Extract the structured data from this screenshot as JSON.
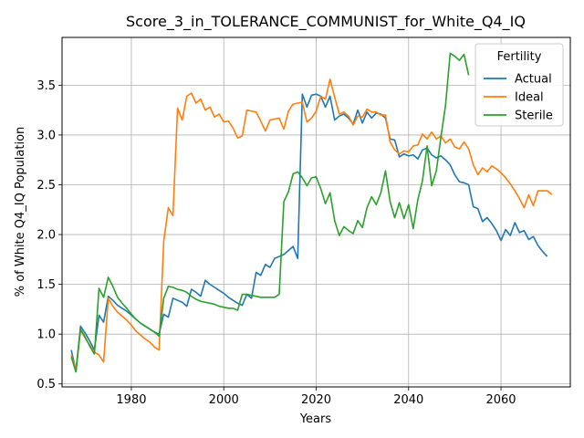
{
  "chart_data": {
    "type": "line",
    "title": "Score_3_in_TOLERANCE_COMMUNIST_for_White_Q4_IQ",
    "xlabel": "Years",
    "ylabel": "% of White Q4_IQ Population",
    "xlim": [
      1965,
      2075
    ],
    "ylim": [
      0.47,
      3.98
    ],
    "xticks": [
      1980,
      2000,
      2020,
      2040,
      2060
    ],
    "yticks": [
      0.5,
      1.0,
      1.5,
      2.0,
      2.5,
      3.0,
      3.5
    ],
    "grid": true,
    "legend": {
      "title": "Fertility",
      "placement": "top-right"
    },
    "series": [
      {
        "name": "Actual",
        "color": "#1f77b4",
        "points": [
          [
            1967,
            0.84
          ],
          [
            1968,
            0.63
          ],
          [
            1969,
            1.08
          ],
          [
            1970,
            1.01
          ],
          [
            1971,
            0.93
          ],
          [
            1972,
            0.84
          ],
          [
            1973,
            1.19
          ],
          [
            1974,
            1.12
          ],
          [
            1975,
            1.38
          ],
          [
            1976,
            1.34
          ],
          [
            1977,
            1.29
          ],
          [
            1978,
            1.26
          ],
          [
            1979,
            1.23
          ],
          [
            1980,
            1.19
          ],
          [
            1981,
            1.15
          ],
          [
            1982,
            1.11
          ],
          [
            1983,
            1.08
          ],
          [
            1984,
            1.05
          ],
          [
            1985,
            1.02
          ],
          [
            1986,
            1.0
          ],
          [
            1987,
            1.2
          ],
          [
            1988,
            1.17
          ],
          [
            1989,
            1.36
          ],
          [
            1990,
            1.34
          ],
          [
            1991,
            1.32
          ],
          [
            1992,
            1.28
          ],
          [
            1993,
            1.45
          ],
          [
            1994,
            1.42
          ],
          [
            1995,
            1.38
          ],
          [
            1996,
            1.54
          ],
          [
            1997,
            1.5
          ],
          [
            1998,
            1.47
          ],
          [
            1999,
            1.44
          ],
          [
            2000,
            1.41
          ],
          [
            2001,
            1.37
          ],
          [
            2002,
            1.34
          ],
          [
            2003,
            1.31
          ],
          [
            2004,
            1.29
          ],
          [
            2005,
            1.4
          ],
          [
            2006,
            1.36
          ],
          [
            2007,
            1.62
          ],
          [
            2008,
            1.59
          ],
          [
            2009,
            1.7
          ],
          [
            2010,
            1.67
          ],
          [
            2011,
            1.76
          ],
          [
            2012,
            1.78
          ],
          [
            2013,
            1.8
          ],
          [
            2014,
            1.84
          ],
          [
            2015,
            1.88
          ],
          [
            2016,
            1.76
          ],
          [
            2017,
            3.41
          ],
          [
            2018,
            3.28
          ],
          [
            2019,
            3.4
          ],
          [
            2020,
            3.41
          ],
          [
            2021,
            3.39
          ],
          [
            2022,
            3.28
          ],
          [
            2023,
            3.39
          ],
          [
            2024,
            3.15
          ],
          [
            2025,
            3.19
          ],
          [
            2026,
            3.21
          ],
          [
            2027,
            3.17
          ],
          [
            2028,
            3.11
          ],
          [
            2029,
            3.25
          ],
          [
            2030,
            3.12
          ],
          [
            2031,
            3.23
          ],
          [
            2032,
            3.17
          ],
          [
            2033,
            3.22
          ],
          [
            2034,
            3.21
          ],
          [
            2035,
            3.17
          ],
          [
            2036,
            2.96
          ],
          [
            2037,
            2.95
          ],
          [
            2038,
            2.78
          ],
          [
            2039,
            2.81
          ],
          [
            2040,
            2.79
          ],
          [
            2041,
            2.8
          ],
          [
            2042,
            2.76
          ],
          [
            2043,
            2.85
          ],
          [
            2044,
            2.87
          ],
          [
            2045,
            2.8
          ],
          [
            2046,
            2.77
          ],
          [
            2047,
            2.79
          ],
          [
            2048,
            2.75
          ],
          [
            2049,
            2.7
          ],
          [
            2050,
            2.6
          ],
          [
            2051,
            2.53
          ],
          [
            2052,
            2.52
          ],
          [
            2053,
            2.5
          ],
          [
            2054,
            2.28
          ],
          [
            2055,
            2.26
          ],
          [
            2056,
            2.13
          ],
          [
            2057,
            2.17
          ],
          [
            2058,
            2.11
          ],
          [
            2059,
            2.04
          ],
          [
            2060,
            1.94
          ],
          [
            2061,
            2.05
          ],
          [
            2062,
            1.99
          ],
          [
            2063,
            2.12
          ],
          [
            2064,
            2.02
          ],
          [
            2065,
            2.04
          ],
          [
            2066,
            1.95
          ],
          [
            2067,
            1.98
          ],
          [
            2068,
            1.89
          ],
          [
            2069,
            1.83
          ],
          [
            2070,
            1.78
          ]
        ]
      },
      {
        "name": "Ideal",
        "color": "#ff7f0e",
        "points": [
          [
            1967,
            0.79
          ],
          [
            1968,
            0.64
          ],
          [
            1969,
            1.04
          ],
          [
            1970,
            0.96
          ],
          [
            1971,
            0.89
          ],
          [
            1972,
            0.82
          ],
          [
            1973,
            0.79
          ],
          [
            1974,
            0.72
          ],
          [
            1975,
            1.36
          ],
          [
            1976,
            1.28
          ],
          [
            1977,
            1.22
          ],
          [
            1978,
            1.18
          ],
          [
            1979,
            1.14
          ],
          [
            1980,
            1.09
          ],
          [
            1981,
            1.03
          ],
          [
            1982,
            0.99
          ],
          [
            1983,
            0.95
          ],
          [
            1984,
            0.92
          ],
          [
            1985,
            0.87
          ],
          [
            1986,
            0.84
          ],
          [
            1987,
            1.93
          ],
          [
            1988,
            2.27
          ],
          [
            1989,
            2.19
          ],
          [
            1990,
            3.27
          ],
          [
            1991,
            3.15
          ],
          [
            1992,
            3.39
          ],
          [
            1993,
            3.42
          ],
          [
            1994,
            3.32
          ],
          [
            1995,
            3.36
          ],
          [
            1996,
            3.25
          ],
          [
            1997,
            3.28
          ],
          [
            1998,
            3.18
          ],
          [
            1999,
            3.21
          ],
          [
            2000,
            3.13
          ],
          [
            2001,
            3.14
          ],
          [
            2002,
            3.07
          ],
          [
            2003,
            2.97
          ],
          [
            2004,
            2.99
          ],
          [
            2005,
            3.25
          ],
          [
            2006,
            3.24
          ],
          [
            2007,
            3.23
          ],
          [
            2008,
            3.14
          ],
          [
            2009,
            3.04
          ],
          [
            2010,
            3.15
          ],
          [
            2011,
            3.16
          ],
          [
            2012,
            3.17
          ],
          [
            2013,
            3.06
          ],
          [
            2014,
            3.24
          ],
          [
            2015,
            3.31
          ],
          [
            2016,
            3.32
          ],
          [
            2017,
            3.33
          ],
          [
            2018,
            3.13
          ],
          [
            2019,
            3.17
          ],
          [
            2020,
            3.24
          ],
          [
            2021,
            3.39
          ],
          [
            2022,
            3.36
          ],
          [
            2023,
            3.56
          ],
          [
            2024,
            3.38
          ],
          [
            2025,
            3.21
          ],
          [
            2026,
            3.23
          ],
          [
            2027,
            3.19
          ],
          [
            2028,
            3.1
          ],
          [
            2029,
            3.19
          ],
          [
            2030,
            3.18
          ],
          [
            2031,
            3.26
          ],
          [
            2032,
            3.23
          ],
          [
            2033,
            3.23
          ],
          [
            2034,
            3.2
          ],
          [
            2035,
            3.2
          ],
          [
            2036,
            2.93
          ],
          [
            2037,
            2.85
          ],
          [
            2038,
            2.81
          ],
          [
            2039,
            2.84
          ],
          [
            2040,
            2.83
          ],
          [
            2041,
            2.89
          ],
          [
            2042,
            2.9
          ],
          [
            2043,
            3.01
          ],
          [
            2044,
            2.96
          ],
          [
            2045,
            3.03
          ],
          [
            2046,
            2.96
          ],
          [
            2047,
            2.99
          ],
          [
            2048,
            2.92
          ],
          [
            2049,
            2.96
          ],
          [
            2050,
            2.88
          ],
          [
            2051,
            2.86
          ],
          [
            2052,
            2.93
          ],
          [
            2053,
            2.86
          ],
          [
            2054,
            2.7
          ],
          [
            2055,
            2.6
          ],
          [
            2056,
            2.67
          ],
          [
            2057,
            2.63
          ],
          [
            2058,
            2.69
          ],
          [
            2059,
            2.66
          ],
          [
            2060,
            2.62
          ],
          [
            2061,
            2.57
          ],
          [
            2062,
            2.51
          ],
          [
            2063,
            2.44
          ],
          [
            2064,
            2.36
          ],
          [
            2065,
            2.27
          ],
          [
            2066,
            2.4
          ],
          [
            2067,
            2.29
          ],
          [
            2068,
            2.44
          ],
          [
            2069,
            2.44
          ],
          [
            2070,
            2.44
          ],
          [
            2071,
            2.4
          ]
        ]
      },
      {
        "name": "Sterile",
        "color": "#2ca02c",
        "points": [
          [
            1967,
            0.77
          ],
          [
            1968,
            0.62
          ],
          [
            1969,
            1.05
          ],
          [
            1970,
            0.97
          ],
          [
            1971,
            0.88
          ],
          [
            1972,
            0.8
          ],
          [
            1973,
            1.46
          ],
          [
            1974,
            1.37
          ],
          [
            1975,
            1.57
          ],
          [
            1976,
            1.48
          ],
          [
            1977,
            1.37
          ],
          [
            1978,
            1.31
          ],
          [
            1979,
            1.26
          ],
          [
            1980,
            1.2
          ],
          [
            1981,
            1.15
          ],
          [
            1982,
            1.11
          ],
          [
            1983,
            1.08
          ],
          [
            1984,
            1.05
          ],
          [
            1985,
            1.02
          ],
          [
            1986,
            0.98
          ],
          [
            1987,
            1.36
          ],
          [
            1988,
            1.48
          ],
          [
            1989,
            1.47
          ],
          [
            1990,
            1.45
          ],
          [
            1991,
            1.44
          ],
          [
            1992,
            1.42
          ],
          [
            1993,
            1.38
          ],
          [
            1994,
            1.35
          ],
          [
            1995,
            1.33
          ],
          [
            1996,
            1.32
          ],
          [
            1997,
            1.31
          ],
          [
            1998,
            1.3
          ],
          [
            1999,
            1.28
          ],
          [
            2000,
            1.27
          ],
          [
            2001,
            1.26
          ],
          [
            2002,
            1.26
          ],
          [
            2003,
            1.24
          ],
          [
            2004,
            1.4
          ],
          [
            2005,
            1.4
          ],
          [
            2006,
            1.39
          ],
          [
            2007,
            1.38
          ],
          [
            2008,
            1.37
          ],
          [
            2009,
            1.37
          ],
          [
            2010,
            1.37
          ],
          [
            2011,
            1.37
          ],
          [
            2012,
            1.4
          ],
          [
            2013,
            2.33
          ],
          [
            2014,
            2.43
          ],
          [
            2015,
            2.61
          ],
          [
            2016,
            2.63
          ],
          [
            2017,
            2.57
          ],
          [
            2018,
            2.49
          ],
          [
            2019,
            2.57
          ],
          [
            2020,
            2.58
          ],
          [
            2021,
            2.46
          ],
          [
            2022,
            2.31
          ],
          [
            2023,
            2.42
          ],
          [
            2024,
            2.14
          ],
          [
            2025,
            1.99
          ],
          [
            2026,
            2.08
          ],
          [
            2027,
            2.04
          ],
          [
            2028,
            2.01
          ],
          [
            2029,
            2.14
          ],
          [
            2030,
            2.07
          ],
          [
            2031,
            2.27
          ],
          [
            2032,
            2.38
          ],
          [
            2033,
            2.3
          ],
          [
            2034,
            2.42
          ],
          [
            2035,
            2.64
          ],
          [
            2036,
            2.33
          ],
          [
            2037,
            2.17
          ],
          [
            2038,
            2.32
          ],
          [
            2039,
            2.16
          ],
          [
            2040,
            2.3
          ],
          [
            2041,
            2.06
          ],
          [
            2042,
            2.35
          ],
          [
            2043,
            2.54
          ],
          [
            2044,
            2.89
          ],
          [
            2045,
            2.49
          ],
          [
            2046,
            2.64
          ],
          [
            2047,
            2.98
          ],
          [
            2048,
            3.3
          ],
          [
            2049,
            3.82
          ],
          [
            2050,
            3.79
          ],
          [
            2051,
            3.75
          ],
          [
            2052,
            3.81
          ],
          [
            2053,
            3.6
          ]
        ]
      }
    ]
  }
}
